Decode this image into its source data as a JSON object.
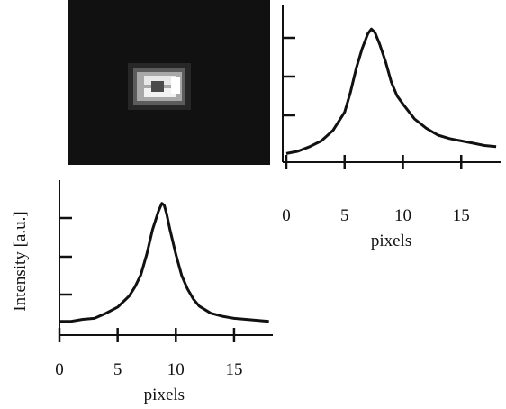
{
  "chart_data": [
    {
      "type": "line",
      "panel": "horizontal-profile",
      "xlabel": "pixels",
      "ylabel": "",
      "xlim": [
        0,
        18
      ],
      "xticks": [
        0,
        5,
        10,
        15
      ],
      "grid": false,
      "x": [
        0,
        1,
        2,
        3,
        4,
        5,
        5.5,
        6,
        6.5,
        7,
        7.3,
        7.6,
        8,
        8.5,
        9,
        9.5,
        10,
        11,
        12,
        13,
        14,
        15,
        16,
        17,
        18
      ],
      "values": [
        0.02,
        0.04,
        0.08,
        0.13,
        0.22,
        0.38,
        0.55,
        0.76,
        0.93,
        1.06,
        1.1,
        1.07,
        0.97,
        0.82,
        0.64,
        0.52,
        0.45,
        0.32,
        0.24,
        0.18,
        0.15,
        0.13,
        0.11,
        0.09,
        0.08
      ]
    },
    {
      "type": "line",
      "panel": "vertical-profile",
      "xlabel": "pixels",
      "ylabel": "Intensity [a.u.]",
      "xlim": [
        0,
        18
      ],
      "xticks": [
        0,
        5,
        10,
        15
      ],
      "grid": false,
      "x": [
        0,
        1,
        2,
        3,
        4,
        5,
        6,
        6.5,
        7,
        7.5,
        8,
        8.5,
        8.8,
        9,
        9.2,
        9.5,
        10,
        10.5,
        11,
        11.5,
        12,
        13,
        14,
        15,
        16,
        17,
        18
      ],
      "values": [
        0.02,
        0.02,
        0.04,
        0.05,
        0.1,
        0.16,
        0.27,
        0.36,
        0.48,
        0.68,
        0.92,
        1.1,
        1.18,
        1.16,
        1.08,
        0.92,
        0.68,
        0.47,
        0.34,
        0.24,
        0.17,
        0.1,
        0.07,
        0.05,
        0.04,
        0.03,
        0.02
      ]
    }
  ],
  "tick_labels": [
    "0",
    "5",
    "10",
    "15"
  ],
  "image_panel": {
    "name": "spot-image",
    "background": "#111111"
  }
}
